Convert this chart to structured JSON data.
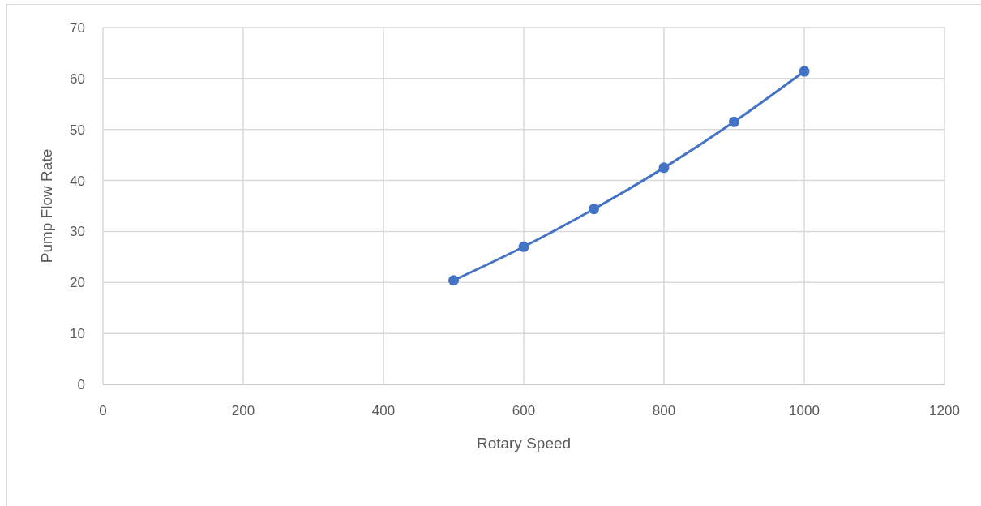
{
  "chart_data": {
    "type": "line",
    "xlabel": "Rotary Speed",
    "ylabel": "Pump Flow Rate",
    "x": [
      500,
      600,
      700,
      800,
      900,
      1000
    ],
    "series": [
      {
        "color": "#4472c4",
        "values": [
          20.4,
          27.0,
          34.4,
          42.5,
          51.5,
          61.4
        ]
      }
    ],
    "xlim": [
      0,
      1200
    ],
    "xticks": [
      0,
      200,
      400,
      600,
      800,
      1000,
      1200
    ],
    "ylim": [
      0,
      70
    ],
    "yticks": [
      0,
      10,
      20,
      30,
      40,
      50,
      60,
      70
    ],
    "grid": true,
    "marker": "circle",
    "line_style": "solid"
  }
}
